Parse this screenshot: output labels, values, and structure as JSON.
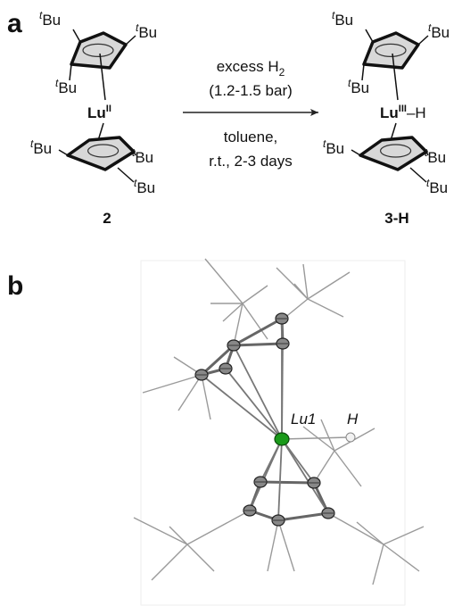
{
  "panel_labels": [
    "a",
    "b"
  ],
  "scheme": {
    "substituent": {
      "prefix": "t",
      "group": "Bu"
    },
    "reactant": {
      "metal": "Lu",
      "oxidation_state": "II",
      "label": "2"
    },
    "conditions": {
      "reagent": "excess H",
      "reagent_subscript": "2",
      "pressure": "(1.2-1.5 bar)",
      "solvent": "toluene,",
      "time": "r.t., 2-3 days"
    },
    "product": {
      "metal": "Lu",
      "oxidation_state": "III",
      "hydride": "–H",
      "label": "3-H"
    }
  },
  "structure": {
    "metal_label": "Lu1",
    "hydride_label": "H"
  }
}
